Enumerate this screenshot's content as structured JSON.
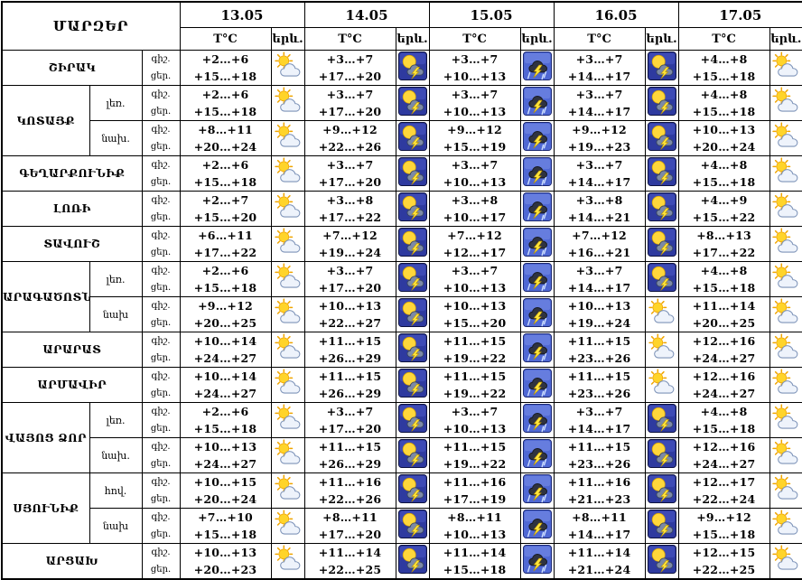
{
  "chart_data": {
    "type": "table",
    "title": "ՄԱՐԶԵՐ",
    "column_groups": [
      "13.05",
      "14.05",
      "15.05",
      "16.05",
      "17.05"
    ],
    "subcolumns": [
      "T°C",
      "երև."
    ],
    "row_labels": {
      "night": "գիշ.",
      "day": "ցեր."
    },
    "icon_legend": {
      "pc": "partly-cloudy",
      "ns": "night-thunderstorm",
      "st": "thunderstorm"
    },
    "colors": {
      "sun": "#ffd42a",
      "sun_ray": "#f0a500",
      "cloud_light": "#eef3fb",
      "cloud_light_edge": "#7d93b8",
      "night_bg": "#2e3a9f",
      "night_bg_light": "#5060d0",
      "storm_bg": "#4f68d4",
      "storm_bg_light": "#7d92e8",
      "cloud_dark": "#2f3340",
      "cloud_night": "#7c8aa6",
      "bolt": "#ffe53b",
      "rain": "#cfe0ff",
      "moon": "#ffd73b"
    },
    "groups": [
      {
        "region": "ՇԻՐԱԿ",
        "rows": [
          {
            "zone": "",
            "night": [
              "+2…+6",
              "+3…+7",
              "+3…+7",
              "+3…+7",
              "+4…+8"
            ],
            "day": [
              "+15…+18",
              "+17…+20",
              "+10…+13",
              "+14…+17",
              "+15…+18"
            ],
            "icons": [
              "pc",
              "ns",
              "st",
              "ns",
              "pc"
            ]
          }
        ]
      },
      {
        "region": "ԿՈՏԱՅՔ",
        "rows": [
          {
            "zone": "լեռ.",
            "night": [
              "+2…+6",
              "+3…+7",
              "+3…+7",
              "+3…+7",
              "+4…+8"
            ],
            "day": [
              "+15…+18",
              "+17…+20",
              "+10…+13",
              "+14…+17",
              "+15…+18"
            ],
            "icons": [
              "pc",
              "ns",
              "st",
              "ns",
              "pc"
            ]
          },
          {
            "zone": "նախ.",
            "night": [
              "+8…+11",
              "+9…+12",
              "+9…+12",
              "+9…+12",
              "+10…+13"
            ],
            "day": [
              "+20…+24",
              "+22…+26",
              "+15…+19",
              "+19…+23",
              "+20…+24"
            ],
            "icons": [
              "pc",
              "ns",
              "st",
              "ns",
              "pc"
            ]
          }
        ]
      },
      {
        "region": "ԳԵՂԱՐՔՈՒՆԻՔ",
        "rows": [
          {
            "zone": "",
            "night": [
              "+2…+6",
              "+3…+7",
              "+3…+7",
              "+3…+7",
              "+4…+8"
            ],
            "day": [
              "+15…+18",
              "+17…+20",
              "+10…+13",
              "+14…+17",
              "+15…+18"
            ],
            "icons": [
              "pc",
              "ns",
              "st",
              "ns",
              "pc"
            ]
          }
        ]
      },
      {
        "region": "ԼՈՌԻ",
        "rows": [
          {
            "zone": "",
            "night": [
              "+2…+7",
              "+3…+8",
              "+3…+8",
              "+3…+8",
              "+4…+9"
            ],
            "day": [
              "+15…+20",
              "+17…+22",
              "+10…+17",
              "+14…+21",
              "+15…+22"
            ],
            "icons": [
              "pc",
              "ns",
              "st",
              "ns",
              "pc"
            ]
          }
        ]
      },
      {
        "region": "ՏԱՎՈՒՇ",
        "rows": [
          {
            "zone": "",
            "night": [
              "+6…+11",
              "+7…+12",
              "+7…+12",
              "+7…+12",
              "+8…+13"
            ],
            "day": [
              "+17…+22",
              "+19…+24",
              "+12…+17",
              "+16…+21",
              "+17…+22"
            ],
            "icons": [
              "pc",
              "ns",
              "st",
              "ns",
              "pc"
            ]
          }
        ]
      },
      {
        "region": "ԱՐԱԳԱԾՈՏՆ",
        "rows": [
          {
            "zone": "լեռ.",
            "night": [
              "+2…+6",
              "+3…+7",
              "+3…+7",
              "+3…+7",
              "+4…+8"
            ],
            "day": [
              "+15…+18",
              "+17…+20",
              "+10…+13",
              "+14…+17",
              "+15…+18"
            ],
            "icons": [
              "pc",
              "ns",
              "st",
              "ns",
              "pc"
            ]
          },
          {
            "zone": "նախ",
            "night": [
              "+9…+12",
              "+10…+13",
              "+10…+13",
              "+10…+13",
              "+11…+14"
            ],
            "day": [
              "+20…+25",
              "+22…+27",
              "+15…+20",
              "+19…+24",
              "+20…+25"
            ],
            "icons": [
              "pc",
              "ns",
              "st",
              "pc",
              "pc"
            ]
          }
        ]
      },
      {
        "region": "ԱՐԱՐԱՏ",
        "rows": [
          {
            "zone": "",
            "night": [
              "+10…+14",
              "+11…+15",
              "+11…+15",
              "+11…+15",
              "+12…+16"
            ],
            "day": [
              "+24…+27",
              "+26…+29",
              "+19…+22",
              "+23…+26",
              "+24…+27"
            ],
            "icons": [
              "pc",
              "ns",
              "st",
              "pc",
              "pc"
            ]
          }
        ]
      },
      {
        "region": "ԱՐՄԱՎԻՐ",
        "rows": [
          {
            "zone": "",
            "night": [
              "+10…+14",
              "+11…+15",
              "+11…+15",
              "+11…+15",
              "+12…+16"
            ],
            "day": [
              "+24…+27",
              "+26…+29",
              "+19…+22",
              "+23…+26",
              "+24…+27"
            ],
            "icons": [
              "pc",
              "ns",
              "st",
              "pc",
              "pc"
            ]
          }
        ]
      },
      {
        "region": "ՎԱՅՈՑ ՁՈՐ",
        "rows": [
          {
            "zone": "լեռ.",
            "night": [
              "+2…+6",
              "+3…+7",
              "+3…+7",
              "+3…+7",
              "+4…+8"
            ],
            "day": [
              "+15…+18",
              "+17…+20",
              "+10…+13",
              "+14…+17",
              "+15…+18"
            ],
            "icons": [
              "pc",
              "ns",
              "st",
              "ns",
              "pc"
            ]
          },
          {
            "zone": "նախ.",
            "night": [
              "+10…+13",
              "+11…+15",
              "+11…+15",
              "+11…+15",
              "+12…+16"
            ],
            "day": [
              "+24…+27",
              "+26…+29",
              "+19…+22",
              "+23…+26",
              "+24…+27"
            ],
            "icons": [
              "pc",
              "ns",
              "st",
              "ns",
              "pc"
            ]
          }
        ]
      },
      {
        "region": "ՍՅՈՒՆԻՔ",
        "rows": [
          {
            "zone": "հով.",
            "night": [
              "+10…+15",
              "+11…+16",
              "+11…+16",
              "+11…+16",
              "+12…+17"
            ],
            "day": [
              "+20…+24",
              "+22…+26",
              "+17…+19",
              "+21…+23",
              "+22…+24"
            ],
            "icons": [
              "pc",
              "ns",
              "st",
              "ns",
              "pc"
            ]
          },
          {
            "zone": "նախ",
            "night": [
              "+7…+10",
              "+8…+11",
              "+8…+11",
              "+8…+11",
              "+9…+12"
            ],
            "day": [
              "+15…+18",
              "+17…+20",
              "+10…+13",
              "+14…+17",
              "+15…+18"
            ],
            "icons": [
              "pc",
              "ns",
              "st",
              "ns",
              "pc"
            ]
          }
        ]
      },
      {
        "region": "ԱՐՑԱԽ",
        "rows": [
          {
            "zone": "",
            "night": [
              "+10…+13",
              "+11…+14",
              "+11…+14",
              "+11…+14",
              "+12…+15"
            ],
            "day": [
              "+20…+23",
              "+22…+25",
              "+15…+18",
              "+21…+24",
              "+22…+25"
            ],
            "icons": [
              "pc",
              "ns",
              "st",
              "ns",
              "pc"
            ]
          }
        ]
      }
    ]
  }
}
